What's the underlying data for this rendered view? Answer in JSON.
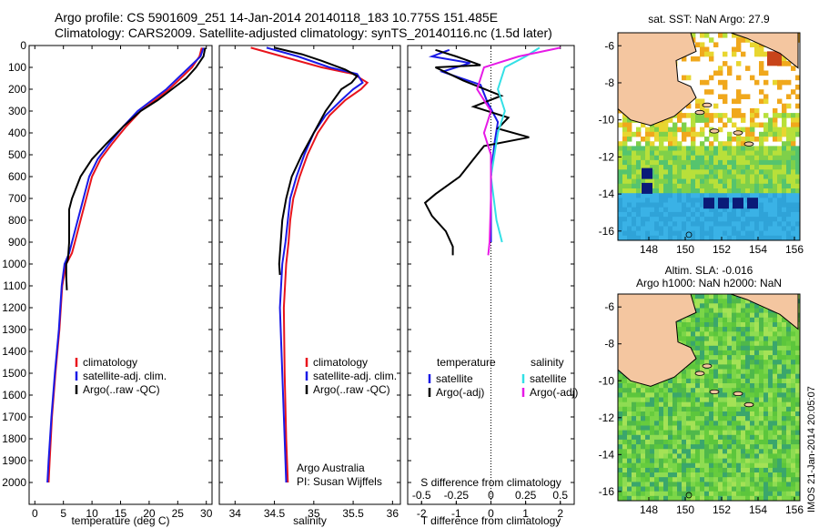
{
  "header": {
    "title_line1": "Argo profile: CS 5901609_251 14-Jan-2014 20140118_183 10.775S 151.485E",
    "title_line2": "Climatology: CARS2009. Satellite-adjusted climatology: synTS_20140116.nc (1.5d later)"
  },
  "side_label": "IMOS 21-Jan-2014 20:05:07",
  "colors": {
    "climatology": "#e8141c",
    "satellite": "#1a1ae6",
    "argo": "#000000",
    "salinity_sat": "#33e0e6",
    "salinity_argo": "#e61ae6",
    "land": "#f4c6a0"
  },
  "chart_data": [
    {
      "type": "line",
      "name": "temperature-panel",
      "xlabel": "temperature (deg C)",
      "ylabel": "",
      "xlim": [
        -1,
        31
      ],
      "ylim": [
        0,
        2100
      ],
      "y_inverted": true,
      "xticks": [
        0,
        5,
        10,
        15,
        20,
        25,
        30
      ],
      "yticks": [
        0,
        100,
        200,
        300,
        400,
        500,
        600,
        700,
        800,
        900,
        1000,
        1100,
        1200,
        1300,
        1400,
        1500,
        1600,
        1700,
        1800,
        1900,
        2000
      ],
      "legend": {
        "placement": "bottom-left",
        "entries": [
          "climatology",
          "satellite-adj. clim.",
          "Argo(..raw -QC)"
        ]
      },
      "series": [
        {
          "name": "climatology",
          "points": [
            [
              29.2,
              10
            ],
            [
              28.8,
              50
            ],
            [
              27.5,
              100
            ],
            [
              25.5,
              150
            ],
            [
              23.5,
              200
            ],
            [
              21,
              250
            ],
            [
              18.5,
              300
            ],
            [
              16,
              370
            ],
            [
              13.5,
              450
            ],
            [
              11.5,
              520
            ],
            [
              10,
              600
            ],
            [
              9,
              700
            ],
            [
              8,
              800
            ],
            [
              7,
              900
            ],
            [
              6.5,
              950
            ],
            [
              5.5,
              1000
            ],
            [
              4.8,
              1100
            ],
            [
              4.3,
              1300
            ],
            [
              3.6,
              1500
            ],
            [
              3,
              1700
            ],
            [
              2.6,
              1900
            ],
            [
              2.4,
              2000
            ]
          ]
        },
        {
          "name": "satellite-adj. clim.",
          "points": [
            [
              29.5,
              10
            ],
            [
              29,
              50
            ],
            [
              27,
              100
            ],
            [
              25,
              150
            ],
            [
              23,
              200
            ],
            [
              20.5,
              250
            ],
            [
              18,
              300
            ],
            [
              15.5,
              370
            ],
            [
              13,
              450
            ],
            [
              11,
              520
            ],
            [
              9.5,
              600
            ],
            [
              8.5,
              700
            ],
            [
              7.5,
              800
            ],
            [
              6.5,
              900
            ],
            [
              6,
              950
            ],
            [
              5.2,
              1000
            ],
            [
              4.7,
              1100
            ],
            [
              4.2,
              1300
            ],
            [
              3.5,
              1500
            ],
            [
              2.9,
              1700
            ],
            [
              2.4,
              1900
            ],
            [
              2.2,
              2000
            ]
          ]
        },
        {
          "name": "Argo(..raw -QC)",
          "points": [
            [
              29.8,
              10
            ],
            [
              29.5,
              50
            ],
            [
              28.2,
              100
            ],
            [
              26.5,
              150
            ],
            [
              24,
              200
            ],
            [
              21.5,
              250
            ],
            [
              18.5,
              300
            ],
            [
              15.5,
              370
            ],
            [
              12.5,
              450
            ],
            [
              10,
              520
            ],
            [
              8,
              600
            ],
            [
              6.5,
              700
            ],
            [
              6,
              750
            ],
            [
              6,
              800
            ],
            [
              6,
              900
            ],
            [
              5.8,
              980
            ],
            [
              5.5,
              1000
            ],
            [
              5.5,
              1060
            ],
            [
              5.6,
              1120
            ]
          ]
        }
      ]
    },
    {
      "type": "line",
      "name": "salinity-panel",
      "xlabel": "salinity",
      "ylabel": "",
      "xlim": [
        33.8,
        36.1
      ],
      "ylim": [
        0,
        2100
      ],
      "y_inverted": true,
      "xticks": [
        34,
        34.5,
        35,
        35.5,
        36
      ],
      "xtick_labels": [
        "34",
        "34.5",
        "35",
        "35.5",
        "36"
      ],
      "legend": {
        "placement": "bottom-right",
        "entries": [
          "climatology",
          "satellite-adj. clim.",
          "Argo(..raw -QC)"
        ]
      },
      "annotation": [
        "Argo Australia",
        "PI: Susan Wijffels"
      ],
      "series": [
        {
          "name": "climatology",
          "points": [
            [
              34.2,
              10
            ],
            [
              34.6,
              50
            ],
            [
              35.1,
              100
            ],
            [
              35.5,
              130
            ],
            [
              35.68,
              170
            ],
            [
              35.6,
              200
            ],
            [
              35.4,
              250
            ],
            [
              35.2,
              320
            ],
            [
              35.05,
              400
            ],
            [
              34.92,
              500
            ],
            [
              34.82,
              600
            ],
            [
              34.74,
              700
            ],
            [
              34.7,
              800
            ],
            [
              34.68,
              900
            ],
            [
              34.65,
              1000
            ],
            [
              34.62,
              1200
            ],
            [
              34.63,
              1500
            ],
            [
              34.65,
              1800
            ],
            [
              34.67,
              2000
            ]
          ]
        },
        {
          "name": "satellite-adj. clim.",
          "points": [
            [
              34.4,
              10
            ],
            [
              34.8,
              50
            ],
            [
              35.2,
              100
            ],
            [
              35.55,
              130
            ],
            [
              35.62,
              170
            ],
            [
              35.5,
              200
            ],
            [
              35.35,
              250
            ],
            [
              35.15,
              320
            ],
            [
              35.0,
              400
            ],
            [
              34.88,
              500
            ],
            [
              34.78,
              600
            ],
            [
              34.7,
              700
            ],
            [
              34.67,
              800
            ],
            [
              34.64,
              900
            ],
            [
              34.6,
              1000
            ],
            [
              34.57,
              1200
            ],
            [
              34.6,
              1500
            ],
            [
              34.63,
              1800
            ],
            [
              34.65,
              2000
            ]
          ]
        },
        {
          "name": "Argo(..raw -QC)",
          "points": [
            [
              34.5,
              10
            ],
            [
              34.85,
              40
            ],
            [
              35.1,
              70
            ],
            [
              35.4,
              110
            ],
            [
              35.55,
              140
            ],
            [
              35.48,
              170
            ],
            [
              35.35,
              200
            ],
            [
              35.15,
              300
            ],
            [
              35.0,
              400
            ],
            [
              34.85,
              500
            ],
            [
              34.72,
              600
            ],
            [
              34.65,
              700
            ],
            [
              34.6,
              800
            ],
            [
              34.58,
              900
            ],
            [
              34.56,
              1000
            ],
            [
              34.57,
              1050
            ]
          ]
        }
      ]
    },
    {
      "type": "line",
      "name": "difference-panel",
      "xlabel": "T difference from climatology",
      "xlabel_top": "S difference from climatology",
      "xlim": [
        -2.4,
        2.4
      ],
      "ylim": [
        0,
        2100
      ],
      "y_inverted": true,
      "xticks": [
        -2,
        -1,
        0,
        1,
        2
      ],
      "xtick_labels": [
        "-2",
        "-1",
        "0",
        "1",
        "2"
      ],
      "top_ticks": [
        -0.5,
        -0.25,
        0,
        0.25,
        0.5
      ],
      "top_tick_labels": [
        "-0.5",
        "-0.25",
        "0",
        "0.25",
        "0.5"
      ],
      "legend": {
        "placement": "bottom",
        "temperature_heading": "temperature",
        "salinity_heading": "salinity",
        "entries": [
          "satellite",
          "Argo(-adj)",
          "satellite",
          "Argo(-adj)"
        ]
      },
      "series": [
        {
          "name": "temperature satellite",
          "points": [
            [
              -1.2,
              20
            ],
            [
              -1.7,
              50
            ],
            [
              -0.6,
              80
            ],
            [
              -1.4,
              120
            ],
            [
              -0.3,
              180
            ],
            [
              -0.1,
              260
            ],
            [
              0.2,
              350
            ],
            [
              0.1,
              450
            ],
            [
              0.0,
              600
            ],
            [
              0.0,
              800
            ],
            [
              0.0,
              900
            ]
          ]
        },
        {
          "name": "temperature Argo",
          "points": [
            [
              -1.6,
              20
            ],
            [
              -1.0,
              50
            ],
            [
              -0.3,
              90
            ],
            [
              -1.6,
              100
            ],
            [
              -0.8,
              160
            ],
            [
              0.3,
              230
            ],
            [
              -0.5,
              280
            ],
            [
              0.5,
              330
            ],
            [
              0.2,
              380
            ],
            [
              1.1,
              420
            ],
            [
              -0.2,
              460
            ],
            [
              -0.5,
              520
            ],
            [
              -0.9,
              600
            ],
            [
              -1.6,
              680
            ],
            [
              -1.9,
              720
            ],
            [
              -1.7,
              780
            ],
            [
              -1.3,
              850
            ],
            [
              -1.1,
              920
            ],
            [
              -1.1,
              960
            ]
          ]
        },
        {
          "name": "salinity satellite",
          "points": [
            [
              0.35,
              10
            ],
            [
              0.25,
              50
            ],
            [
              0.1,
              100
            ],
            [
              0.05,
              200
            ],
            [
              0.1,
              300
            ],
            [
              0.05,
              400
            ],
            [
              0.0,
              600
            ],
            [
              0.04,
              800
            ],
            [
              0.08,
              900
            ]
          ]
        },
        {
          "name": "salinity Argo",
          "points": [
            [
              0.5,
              10
            ],
            [
              0.2,
              50
            ],
            [
              0.05,
              80
            ],
            [
              -0.05,
              100
            ],
            [
              -0.1,
              200
            ],
            [
              0.0,
              300
            ],
            [
              -0.05,
              400
            ],
            [
              0.0,
              500
            ],
            [
              0.0,
              700
            ],
            [
              -0.01,
              900
            ],
            [
              -0.02,
              960
            ]
          ]
        }
      ]
    },
    {
      "type": "heatmap",
      "name": "sst-map",
      "title": "sat. SST: NaN Argo: 27.9",
      "xlim": [
        146.3,
        156.3
      ],
      "ylim": [
        -16.5,
        -5.3
      ],
      "xticks": [
        148,
        150,
        152,
        154,
        156
      ],
      "yticks": [
        -6,
        -8,
        -10,
        -12,
        -14,
        -16
      ]
    },
    {
      "type": "heatmap",
      "name": "sla-map",
      "title_line1": "Altim. SLA: -0.016",
      "title_line2": "Argo h1000: NaN h2000: NaN",
      "xlim": [
        146.3,
        156.3
      ],
      "ylim": [
        -16.5,
        -5.3
      ],
      "xticks": [
        148,
        150,
        152,
        154,
        156
      ],
      "yticks": [
        -6,
        -8,
        -10,
        -12,
        -14,
        -16
      ]
    }
  ]
}
